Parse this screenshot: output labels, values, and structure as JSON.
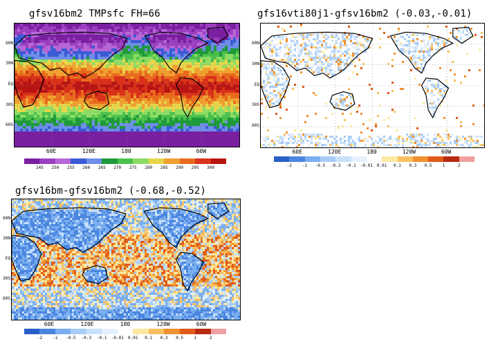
{
  "panels": [
    {
      "id": "p1",
      "title": "gfsv16bm2  TMPsfc  FH=66",
      "kind": "absolute",
      "lat_labels": [
        "60N",
        "30N",
        "EQ",
        "30S",
        "60S"
      ],
      "lon_labels": [
        "60E",
        "120E",
        "180",
        "120W",
        "60W"
      ],
      "colorbar": {
        "labels": [
          "245",
          "250",
          "255",
          "260",
          "265",
          "270",
          "275",
          "280",
          "285",
          "290",
          "295",
          "300"
        ],
        "colors": [
          "#7a1fa0",
          "#9b3fc0",
          "#b766d8",
          "#3a5bd6",
          "#6e8ee8",
          "#1e9a3a",
          "#4cc04c",
          "#8edc64",
          "#e8d64a",
          "#f0a030",
          "#e86a1e",
          "#d8321a",
          "#b81414"
        ]
      }
    },
    {
      "id": "p2",
      "title": "gfs16vti80j1-gfsv16bm2  (-0.03,-0.01)",
      "kind": "diff_small",
      "lat_labels": [
        "60N",
        "30N",
        "EQ",
        "30S",
        "60S"
      ],
      "lon_labels": [
        "60E",
        "120E",
        "180",
        "120W",
        "60W"
      ],
      "colorbar": {
        "labels": [
          "-2",
          "-1",
          "-0.5",
          "-0.3",
          "-0.1",
          "-0.01",
          "0.01",
          "0.1",
          "0.3",
          "0.5",
          "1",
          "2"
        ],
        "colors": [
          "#2a5fc8",
          "#4a86e0",
          "#7aaef0",
          "#a8ccf6",
          "#c8e0fa",
          "#e4f0fc",
          "#ffffff",
          "#fce8a0",
          "#f8c060",
          "#f09030",
          "#e05a1a",
          "#b82a10",
          "#f0a0a0"
        ]
      }
    },
    {
      "id": "p3",
      "title": "gfsv16bm-gfsv16bm2  (-0.68,-0.52)",
      "kind": "diff_large",
      "lat_labels": [
        "60N",
        "30N",
        "EQ",
        "30S",
        "60S"
      ],
      "lon_labels": [
        "60E",
        "120E",
        "180",
        "120W",
        "60W"
      ],
      "colorbar": {
        "labels": [
          "-2",
          "-1",
          "-0.5",
          "-0.3",
          "-0.1",
          "-0.01",
          "0.01",
          "0.1",
          "0.3",
          "0.5",
          "1",
          "2"
        ],
        "colors": [
          "#2a5fc8",
          "#4a86e0",
          "#7aaef0",
          "#a8ccf6",
          "#c8e0fa",
          "#e4f0fc",
          "#ffffff",
          "#fce8a0",
          "#f8c060",
          "#f09030",
          "#e05a1a",
          "#b82a10",
          "#f0a0a0"
        ]
      }
    }
  ]
}
